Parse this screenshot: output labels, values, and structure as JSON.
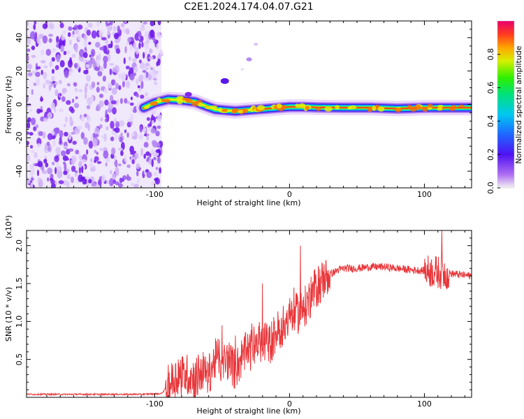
{
  "title": "C2E1.2024.174.04.07.G21",
  "colorbar_label": "Normalized spectral amplitude",
  "chart_data": [
    {
      "type": "heatmap",
      "name": "spectrogram",
      "xlabel": "Height of straight line (km)",
      "ylabel": "Frequency (Hz)",
      "xlim": [
        -195,
        135
      ],
      "ylim": [
        -50,
        50
      ],
      "xticks": [
        -100,
        0,
        100
      ],
      "xtick_labels": [
        "-100",
        "0",
        "100"
      ],
      "yticks": [
        -40,
        -20,
        0,
        20,
        40
      ],
      "ytick_labels": [
        "-40",
        "-20",
        "0",
        "20",
        "40"
      ],
      "noise_region_x": [
        -195,
        -95
      ],
      "ridge": {
        "x": [
          -108,
          -100,
          -90,
          -80,
          -70,
          -62,
          -55,
          -48,
          -40,
          -32,
          -24,
          -16,
          -8,
          0,
          10,
          20,
          40,
          60,
          80,
          90,
          100,
          110,
          120,
          135
        ],
        "y": [
          -2,
          1,
          3,
          2.5,
          1.5,
          -1,
          -3,
          -3.5,
          -4,
          -3.5,
          -3,
          -2.5,
          -2,
          -1.5,
          -1.5,
          -1.8,
          -2,
          -2,
          -2.5,
          -2.3,
          -2,
          -2,
          -2,
          -2
        ]
      },
      "colorbar": {
        "range": [
          0,
          1
        ],
        "ticks": [
          0.0,
          0.2,
          0.4,
          0.6,
          0.8
        ],
        "tick_labels": [
          "0.0",
          "0.2",
          "0.4",
          "0.6",
          "0.8"
        ]
      }
    },
    {
      "type": "line",
      "name": "snr",
      "xlabel": "Height of straight line (km)",
      "ylabel": "SNR (10 * v/v)",
      "scale_label": "(x10⁴)",
      "xlim": [
        -195,
        135
      ],
      "ylim": [
        0,
        2.2
      ],
      "xticks": [
        -100,
        0,
        100
      ],
      "xtick_labels": [
        "-100",
        "0",
        "100"
      ],
      "yticks": [
        0.5,
        1.0,
        1.5,
        2.0
      ],
      "ytick_labels": [
        "0.5",
        "1.0",
        "1.5",
        "2.0"
      ],
      "color": "#e8363a",
      "x": [
        -195,
        -150,
        -110,
        -95,
        -90,
        -85,
        -80,
        -75,
        -70,
        -65,
        -60,
        -55,
        -50,
        -45,
        -40,
        -35,
        -30,
        -25,
        -20,
        -15,
        -10,
        -5,
        0,
        5,
        10,
        15,
        20,
        25,
        30,
        35,
        40,
        50,
        60,
        70,
        80,
        90,
        100,
        105,
        110,
        115,
        120,
        135
      ],
      "y": [
        0.04,
        0.04,
        0.04,
        0.05,
        0.15,
        0.25,
        0.3,
        0.3,
        0.25,
        0.35,
        0.3,
        0.5,
        0.45,
        0.5,
        0.35,
        0.55,
        0.6,
        0.7,
        0.75,
        0.7,
        0.85,
        0.95,
        1.05,
        1.1,
        1.15,
        1.3,
        1.45,
        1.55,
        1.62,
        1.67,
        1.7,
        1.7,
        1.72,
        1.72,
        1.7,
        1.68,
        1.67,
        1.66,
        1.65,
        1.64,
        1.63,
        1.6
      ]
    }
  ]
}
